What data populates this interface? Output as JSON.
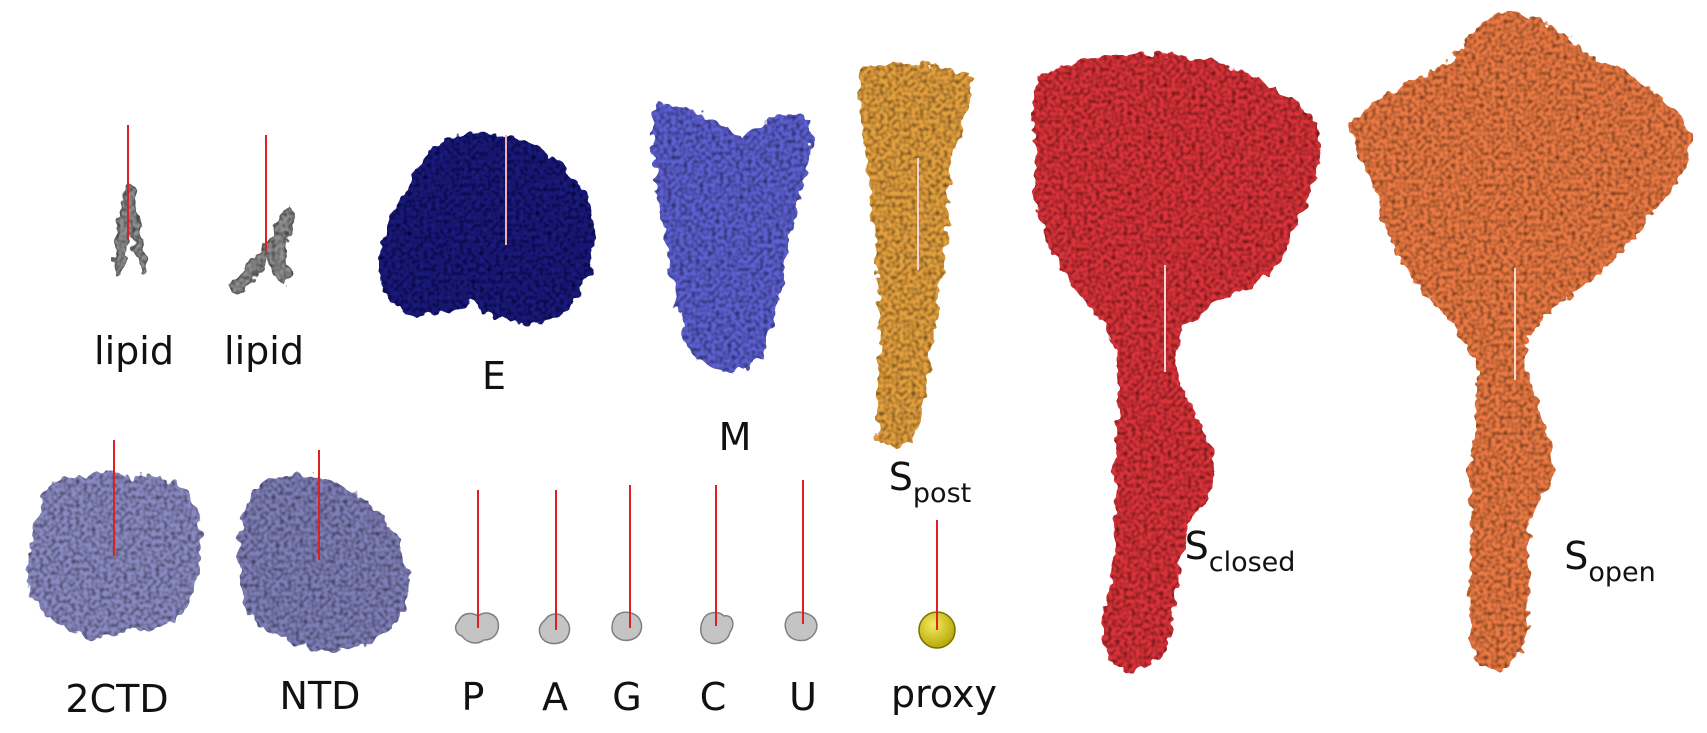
{
  "colors": {
    "lipid": "#8f8f8f",
    "ctd": "#8a8ac2",
    "ntd": "#7f7fb8",
    "nucleotide": "#c4c4c4",
    "proxy": "#d8cc1a",
    "E": "#1e1e7a",
    "M": "#5d61cf",
    "S_post": "#e3a040",
    "S_closed": "#d8343a",
    "S_open": "#ea7a44",
    "marker_line": "#e02020"
  },
  "molecules": [
    {
      "id": "lipid-1",
      "label": "lipid",
      "icon": "lipid-molecule-icon"
    },
    {
      "id": "lipid-2",
      "label": "lipid",
      "icon": "lipid-molecule-icon"
    },
    {
      "id": "E",
      "label": "E",
      "icon": "envelope-protein-icon"
    },
    {
      "id": "M",
      "label": "M",
      "icon": "membrane-protein-icon"
    },
    {
      "id": "S_post",
      "label_main": "S",
      "label_sub": "post",
      "icon": "spike-postfusion-icon"
    },
    {
      "id": "S_closed",
      "label_main": "S",
      "label_sub": "closed",
      "icon": "spike-closed-icon"
    },
    {
      "id": "S_open",
      "label_main": "S",
      "label_sub": "open",
      "icon": "spike-open-icon"
    },
    {
      "id": "2CTD",
      "label": "2CTD",
      "icon": "ctd-dimer-icon"
    },
    {
      "id": "NTD",
      "label": "NTD",
      "icon": "ntd-domain-icon"
    },
    {
      "id": "P",
      "label": "P",
      "icon": "nucleotide-icon"
    },
    {
      "id": "A",
      "label": "A",
      "icon": "nucleotide-icon"
    },
    {
      "id": "G",
      "label": "G",
      "icon": "nucleotide-icon"
    },
    {
      "id": "C",
      "label": "C",
      "icon": "nucleotide-icon"
    },
    {
      "id": "U",
      "label": "U",
      "icon": "nucleotide-icon"
    },
    {
      "id": "proxy",
      "label": "proxy",
      "icon": "proxy-sphere-icon"
    }
  ]
}
